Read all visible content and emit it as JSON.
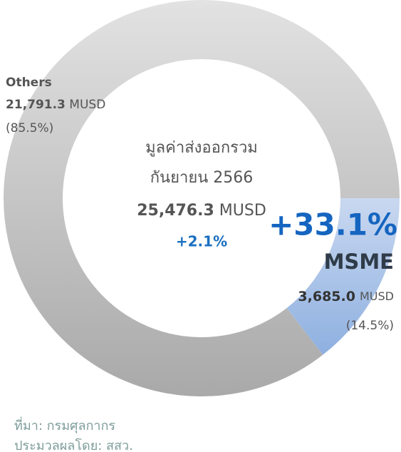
{
  "chart_data": {
    "type": "donut",
    "categories": [
      "MSME",
      "Others"
    ],
    "values": [
      3685.0,
      21791.3
    ],
    "value_labels": [
      "3,685.0",
      "21,791.3"
    ],
    "shares": [
      14.5,
      85.5
    ],
    "share_labels": [
      "(14.5%)",
      "(85.5%)"
    ],
    "colors": [
      "#a9c3e8",
      "#c4c4c4"
    ],
    "unit": "MUSD",
    "msme_change": {
      "value": 33.1,
      "label": "+33.1%"
    },
    "center": {
      "title": [
        "มูลค่าส่งออกรวม",
        "กันยายน 2566"
      ],
      "total": {
        "value": 25476.3,
        "label": "25,476.3"
      },
      "change": {
        "value": 2.1,
        "label": "+2.1%"
      }
    }
  },
  "source": [
    "ที่มา: กรมศุลกากร",
    "ประมวลผลโดย: สสว."
  ]
}
